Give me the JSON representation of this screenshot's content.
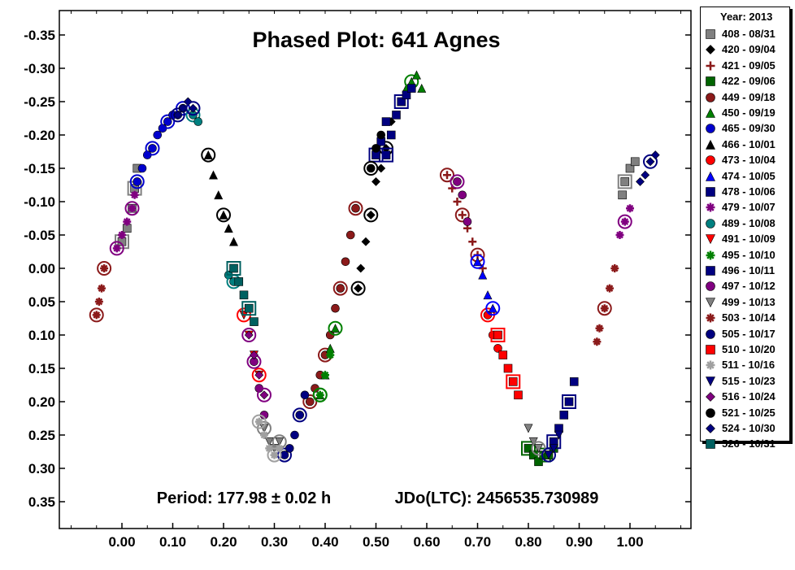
{
  "chart_data": {
    "type": "scatter",
    "title": "Phased Plot: 641 Agnes",
    "annotations": {
      "period": "Period: 177.98 ± 0.02 h",
      "epoch": "JDo(LTC): 2456535.730989"
    },
    "xlim": [
      -0.12,
      1.12
    ],
    "ylim": [
      -0.39,
      0.39
    ],
    "y_inverted": true,
    "grid": false,
    "legend_position": "right, outside",
    "legend_title": "Year: 2013",
    "x_ticks": [
      "0.00",
      "0.10",
      "0.20",
      "0.30",
      "0.40",
      "0.50",
      "0.60",
      "0.70",
      "0.80",
      "0.90",
      "1.00"
    ],
    "y_ticks": [
      "-0.35",
      "-0.30",
      "-0.25",
      "-0.20",
      "-0.15",
      "-0.10",
      "-0.05",
      "0.00",
      "0.05",
      "0.10",
      "0.15",
      "0.20",
      "0.25",
      "0.30",
      "0.35"
    ],
    "series": [
      {
        "name": "408 - 08/31",
        "marker": "square",
        "color": "#808080",
        "x": [
          0.0,
          0.01,
          0.02,
          0.025,
          0.03,
          0.985,
          0.99,
          1.0,
          1.01
        ],
        "y": [
          -0.04,
          -0.06,
          -0.09,
          -0.12,
          -0.15,
          -0.11,
          -0.13,
          -0.15,
          -0.16
        ]
      },
      {
        "name": "420 - 09/04",
        "marker": "diamond",
        "color": "#000000",
        "x": [
          0.465,
          0.47,
          0.48,
          0.49,
          0.5,
          0.51,
          0.52,
          0.53
        ],
        "y": [
          0.03,
          0.0,
          -0.04,
          -0.08,
          -0.13,
          -0.15,
          -0.18,
          -0.22
        ]
      },
      {
        "name": "421 - 09/05",
        "marker": "plus",
        "color": "#8b1a1a",
        "x": [
          0.64,
          0.65,
          0.66,
          0.67,
          0.68,
          0.69,
          0.7,
          0.71
        ],
        "y": [
          -0.14,
          -0.12,
          -0.1,
          -0.08,
          -0.06,
          -0.04,
          -0.02,
          0.0
        ]
      },
      {
        "name": "422 - 09/06",
        "marker": "square",
        "color": "#006400",
        "x": [
          0.8,
          0.81,
          0.82,
          0.83,
          0.84,
          0.85
        ],
        "y": [
          0.27,
          0.28,
          0.29,
          0.28,
          0.28,
          0.27
        ]
      },
      {
        "name": "449 - 09/18",
        "marker": "circle",
        "color": "#8b1a1a",
        "x": [
          0.37,
          0.38,
          0.39,
          0.4,
          0.41,
          0.42,
          0.43,
          0.44,
          0.45,
          0.46
        ],
        "y": [
          0.2,
          0.18,
          0.16,
          0.13,
          0.1,
          0.06,
          0.03,
          -0.01,
          -0.05,
          -0.09
        ]
      },
      {
        "name": "450 - 09/19",
        "marker": "triangle-up",
        "color": "#008000",
        "x": [
          0.39,
          0.4,
          0.41,
          0.42,
          0.55,
          0.56,
          0.57,
          0.58,
          0.59
        ],
        "y": [
          0.19,
          0.16,
          0.12,
          0.09,
          -0.25,
          -0.27,
          -0.28,
          -0.29,
          -0.27
        ]
      },
      {
        "name": "465 - 09/30",
        "marker": "circle",
        "color": "#0000cd",
        "x": [
          0.03,
          0.04,
          0.05,
          0.06,
          0.07,
          0.08,
          0.09,
          0.1,
          0.11,
          0.12
        ],
        "y": [
          -0.13,
          -0.15,
          -0.17,
          -0.18,
          -0.2,
          -0.21,
          -0.22,
          -0.23,
          -0.23,
          -0.24
        ]
      },
      {
        "name": "466 - 10/01",
        "marker": "triangle-up",
        "color": "#000000",
        "x": [
          0.17,
          0.18,
          0.19,
          0.2,
          0.21,
          0.22
        ],
        "y": [
          -0.17,
          -0.14,
          -0.11,
          -0.08,
          -0.06,
          -0.04
        ]
      },
      {
        "name": "473 - 10/04",
        "marker": "circle",
        "color": "#ff0000",
        "x": [
          0.72,
          0.73,
          0.74
        ],
        "y": [
          0.07,
          0.1,
          0.12
        ]
      },
      {
        "name": "474 - 10/05",
        "marker": "triangle-up",
        "color": "#0000ff",
        "x": [
          0.7,
          0.71,
          0.72,
          0.73
        ],
        "y": [
          -0.01,
          0.01,
          0.04,
          0.06
        ]
      },
      {
        "name": "478 - 10/06",
        "marker": "square",
        "color": "#000080",
        "x": [
          0.52,
          0.53,
          0.54,
          0.55,
          0.56,
          0.57,
          0.85,
          0.86,
          0.87,
          0.88,
          0.89
        ],
        "y": [
          -0.17,
          -0.2,
          -0.23,
          -0.25,
          -0.26,
          -0.27,
          0.26,
          0.24,
          0.22,
          0.2,
          0.17
        ]
      },
      {
        "name": "479 - 10/07",
        "marker": "star",
        "color": "#800080",
        "x": [
          -0.01,
          0.0,
          0.01,
          0.02,
          0.025,
          0.98,
          0.99,
          1.0
        ],
        "y": [
          -0.03,
          -0.05,
          -0.07,
          -0.09,
          -0.11,
          -0.05,
          -0.07,
          -0.09
        ]
      },
      {
        "name": "489 - 10/08",
        "marker": "circle",
        "color": "#008080",
        "x": [
          0.14,
          0.15,
          0.21,
          0.22
        ],
        "y": [
          -0.23,
          -0.22,
          0.01,
          0.02
        ]
      },
      {
        "name": "491 - 10/09",
        "marker": "triangle-down",
        "color": "#ff0000",
        "x": [
          0.24,
          0.25,
          0.26,
          0.27
        ],
        "y": [
          0.07,
          0.1,
          0.13,
          0.16
        ]
      },
      {
        "name": "495 - 10/10",
        "marker": "star",
        "color": "#008000",
        "x": [
          0.39,
          0.4,
          0.41
        ],
        "y": [
          0.19,
          0.16,
          0.13
        ]
      },
      {
        "name": "496 - 10/11",
        "marker": "square",
        "color": "#000080",
        "x": [
          0.5,
          0.51,
          0.52
        ],
        "y": [
          -0.17,
          -0.19,
          -0.22
        ]
      },
      {
        "name": "497 - 10/12",
        "marker": "circle",
        "color": "#800080",
        "x": [
          0.26,
          0.27,
          0.28,
          0.66,
          0.67,
          0.68
        ],
        "y": [
          0.14,
          0.18,
          0.22,
          -0.13,
          -0.11,
          -0.07
        ]
      },
      {
        "name": "499 - 10/13",
        "marker": "triangle-down",
        "color": "#808080",
        "x": [
          0.28,
          0.29,
          0.3,
          0.31,
          0.8,
          0.81,
          0.82
        ],
        "y": [
          0.24,
          0.26,
          0.27,
          0.26,
          0.24,
          0.26,
          0.27
        ]
      },
      {
        "name": "503 - 10/14",
        "marker": "star",
        "color": "#8b1a1a",
        "x": [
          -0.05,
          -0.045,
          -0.04,
          -0.035,
          0.935,
          0.94,
          0.95,
          0.96,
          0.97
        ],
        "y": [
          0.07,
          0.05,
          0.03,
          0.0,
          0.11,
          0.09,
          0.06,
          0.03,
          0.0
        ]
      },
      {
        "name": "505 - 10/17",
        "marker": "circle",
        "color": "#000080",
        "x": [
          0.32,
          0.33,
          0.34,
          0.35,
          0.36
        ],
        "y": [
          0.28,
          0.27,
          0.25,
          0.22,
          0.19
        ]
      },
      {
        "name": "510 - 10/20",
        "marker": "square",
        "color": "#ff0000",
        "x": [
          0.74,
          0.75,
          0.76,
          0.77,
          0.78
        ],
        "y": [
          0.1,
          0.13,
          0.15,
          0.17,
          0.19
        ]
      },
      {
        "name": "511 - 10/16",
        "marker": "star",
        "color": "#a0a0a0",
        "x": [
          0.27,
          0.28,
          0.29,
          0.3,
          0.31
        ],
        "y": [
          0.23,
          0.25,
          0.27,
          0.28,
          0.27
        ]
      },
      {
        "name": "515 - 10/23",
        "marker": "triangle-down",
        "color": "#000080",
        "x": [
          0.84,
          0.85,
          0.86
        ],
        "y": [
          0.28,
          0.27,
          0.25
        ]
      },
      {
        "name": "516 - 10/24",
        "marker": "diamond",
        "color": "#800080",
        "x": [
          0.25,
          0.26,
          0.27,
          0.28
        ],
        "y": [
          0.1,
          0.13,
          0.16,
          0.19
        ]
      },
      {
        "name": "521 - 10/25",
        "marker": "circle",
        "color": "#000000",
        "x": [
          0.49,
          0.5,
          0.51
        ],
        "y": [
          -0.15,
          -0.18,
          -0.2
        ]
      },
      {
        "name": "524 - 10/30",
        "marker": "diamond",
        "color": "#000080",
        "x": [
          0.11,
          0.12,
          0.13,
          0.14,
          1.02,
          1.03,
          1.04,
          1.05
        ],
        "y": [
          -0.23,
          -0.24,
          -0.25,
          -0.24,
          -0.13,
          -0.14,
          -0.16,
          -0.17
        ]
      },
      {
        "name": "526 - 10/31",
        "marker": "square",
        "color": "#006060",
        "x": [
          0.22,
          0.23,
          0.24,
          0.25,
          0.26
        ],
        "y": [
          0.0,
          0.02,
          0.04,
          0.06,
          0.08
        ]
      }
    ]
  }
}
